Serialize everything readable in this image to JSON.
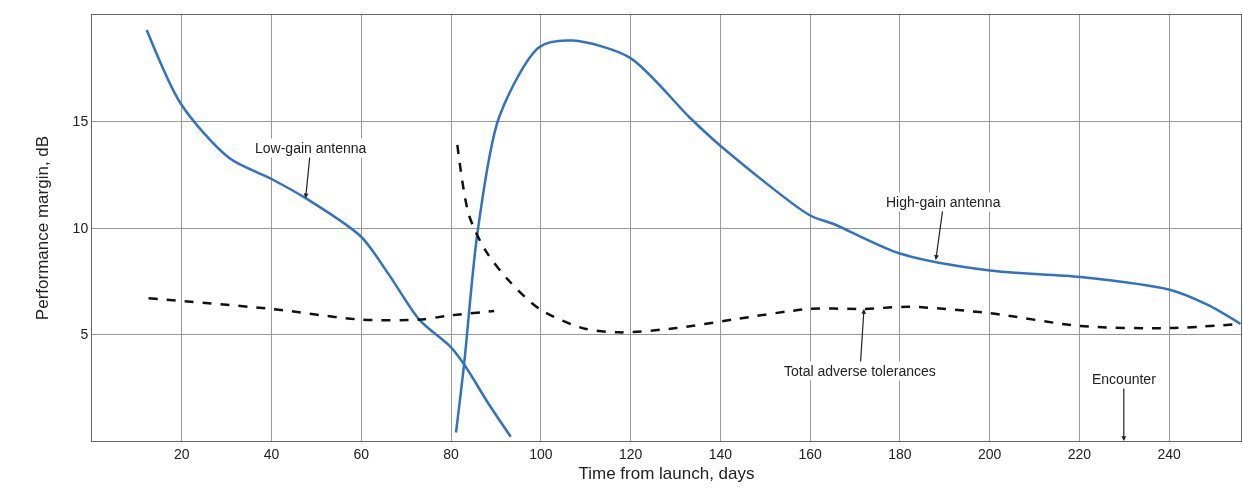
{
  "chart_data": {
    "type": "line",
    "xlabel": "Time from launch, days",
    "ylabel": "Performance margin, dB",
    "xlim": [
      0,
      256
    ],
    "xticks": [
      20,
      40,
      60,
      80,
      100,
      120,
      140,
      160,
      180,
      200,
      220,
      240
    ],
    "ylim": [
      0,
      20
    ],
    "yticks": [
      5,
      10,
      15
    ],
    "grid": true,
    "series": [
      {
        "color": "#2f72c8",
        "line_style": "solid",
        "x": [
          12.2,
          19.9,
          30.5,
          40,
          47.6,
          59.9,
          66.2,
          72.9,
          80,
          82.9,
          88.5,
          93.3
        ],
        "values": [
          19.3,
          15.8,
          13.3,
          12.3,
          11.4,
          9.6,
          7.8,
          5.7,
          4.4,
          3.6,
          1.7,
          0.2
        ]
      },
      {
        "color": "#2f72c8",
        "line_style": "solid",
        "x": [
          81.1,
          82.9,
          85.9,
          90.7,
          99.7,
          107.1,
          119.8,
          133.1,
          139.8,
          159.9,
          165.1,
          180,
          200.1,
          220.2,
          240.1,
          248.5,
          255.9
        ],
        "values": [
          0.4,
          3.6,
          9.8,
          15.2,
          18.5,
          18.8,
          18.0,
          15.2,
          13.9,
          10.6,
          10.2,
          8.8,
          8.0,
          7.7,
          7.1,
          6.4,
          5.5
        ]
      },
      {
        "color": "#111111",
        "line_style": "dashed",
        "x": [
          12.6,
          40,
          59.9,
          72.9,
          80,
          89.6
        ],
        "values": [
          6.7,
          6.2,
          5.7,
          5.7,
          5.9,
          6.1
        ]
      },
      {
        "color": "#111111",
        "line_style": "dashed",
        "x": [
          81.4,
          84.0,
          87.8,
          93.0,
          99.7,
          109.3,
          117.5,
          130.2,
          142.8,
          159.9,
          171.8,
          182.3,
          200.1,
          220.2,
          240.1,
          255.9
        ],
        "values": [
          13.9,
          10.6,
          8.9,
          7.5,
          6.2,
          5.3,
          5.1,
          5.3,
          5.7,
          6.2,
          6.2,
          6.3,
          6.0,
          5.4,
          5.3,
          5.5
        ]
      }
    ],
    "annotations": [
      {
        "text": "Low-gain antenna",
        "x": 47.6,
        "y": 11.4
      },
      {
        "text": "High-gain antenna",
        "x": 188,
        "y": 8.5
      },
      {
        "text": "Total adverse tolerances",
        "x": 172,
        "y": 6.2
      },
      "Encounter"
    ]
  }
}
